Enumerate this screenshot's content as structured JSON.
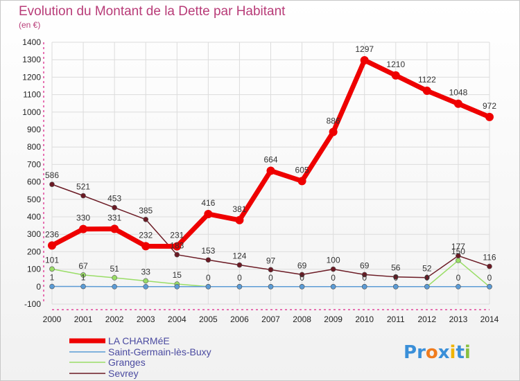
{
  "chart_data": {
    "type": "line",
    "title": "Evolution du Montant de la Dette par Habitant",
    "subtitle": "(en €)",
    "xlabel": "",
    "ylabel": "",
    "ylim": [
      -100,
      1400
    ],
    "yticks": [
      -100,
      0,
      100,
      200,
      300,
      400,
      500,
      600,
      700,
      800,
      900,
      1000,
      1100,
      1200,
      1300,
      1400
    ],
    "x": [
      "2000",
      "2001",
      "2002",
      "2003",
      "2004",
      "2005",
      "2006",
      "2007",
      "2008",
      "2009",
      "2010",
      "2011",
      "2012",
      "2013",
      "2014"
    ],
    "grid": true,
    "legend_position": "bottom-left",
    "series": [
      {
        "name": "LA CHARMéE",
        "color": "#ee0000",
        "values": [
          236,
          330,
          331,
          232,
          231,
          416,
          381,
          664,
          605,
          886,
          1297,
          1210,
          1122,
          1048,
          972
        ],
        "labels": [
          "236",
          "330",
          "331",
          "232",
          "231",
          "416",
          "381",
          "664",
          "605",
          "886",
          "1297",
          "1210",
          "1122",
          "1048",
          "972"
        ]
      },
      {
        "name": "Saint-Germain-lès-Buxy",
        "color": "#5b9bd5",
        "values": [
          1,
          1,
          0,
          0,
          0,
          0,
          0,
          0,
          0,
          0,
          0,
          0,
          0,
          0,
          0
        ],
        "labels": [
          "1",
          "1",
          "",
          "",
          "",
          "",
          "",
          "",
          "",
          "",
          "",
          "",
          "",
          "0",
          "0"
        ]
      },
      {
        "name": "Granges",
        "color": "#99dd66",
        "values": [
          101,
          67,
          51,
          33,
          15,
          0,
          0,
          0,
          0,
          0,
          0,
          0,
          0,
          150,
          0
        ],
        "labels": [
          "101",
          "67",
          "51",
          "33",
          "15",
          "0",
          "0",
          "0",
          "0",
          "0",
          "0",
          "0",
          "0",
          "150",
          ""
        ]
      },
      {
        "name": "Sevrey",
        "color": "#6b1a24",
        "values": [
          586,
          521,
          453,
          385,
          183,
          153,
          124,
          97,
          69,
          100,
          69,
          56,
          52,
          177,
          116
        ],
        "labels": [
          "586",
          "521",
          "453",
          "385",
          "183",
          "153",
          "124",
          "97",
          "69",
          "100",
          "69",
          "56",
          "52",
          "177",
          "116"
        ]
      }
    ]
  },
  "logo": {
    "text": "Proxiti",
    "letters": [
      "P",
      "r",
      "o",
      "x",
      "i",
      "t",
      "i"
    ],
    "colors": [
      "#3a8fd8",
      "#3a8fd8",
      "#f07c1e",
      "#3a8fd8",
      "#f0b400",
      "#3a8fd8",
      "#88c040"
    ]
  }
}
